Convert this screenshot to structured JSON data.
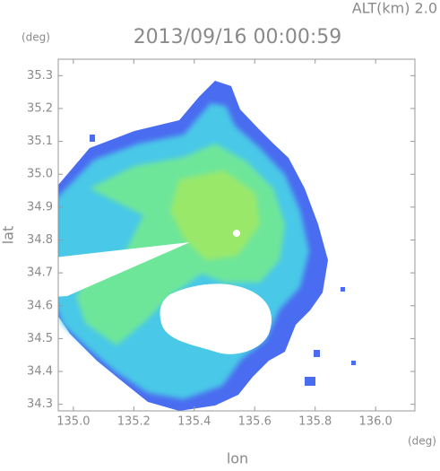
{
  "chart_data": {
    "type": "radar-map",
    "title": "2013/09/16 00:00:59",
    "annotation": "ALT(km) 2.0",
    "x_label": "lon",
    "y_label": "lat",
    "x_unit": "(deg)",
    "y_unit": "(deg)",
    "xlim": [
      134.95,
      136.13
    ],
    "xticks": [
      {
        "value": 135,
        "label": "135.0"
      },
      135.2,
      135.4,
      135.6,
      135.8,
      {
        "value": 136,
        "label": "136.0"
      }
    ],
    "ylim": [
      34.28,
      35.35
    ],
    "yticks": [
      34.3,
      34.4,
      34.5,
      34.6,
      34.7,
      34.8,
      34.9,
      {
        "value": 35,
        "label": "35.0"
      },
      35.1,
      35.2,
      35.3
    ]
  }
}
